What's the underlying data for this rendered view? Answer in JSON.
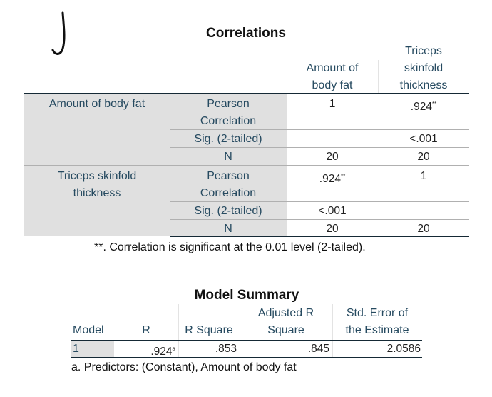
{
  "corr": {
    "title": "Correlations",
    "col_headers": [
      "Amount of body fat",
      "Triceps skinfold thickness"
    ],
    "col_header_lines": [
      [
        "Amount of",
        "body fat"
      ],
      [
        "Triceps",
        "skinfold",
        "thickness"
      ]
    ],
    "rows": [
      {
        "label": "Amount of body fat",
        "label_lines": [
          "Amount of body fat"
        ],
        "stats": [
          {
            "name_lines": [
              "Pearson",
              "Correlation"
            ],
            "values": [
              "1",
              ".924"
            ],
            "sup": [
              "",
              "**"
            ]
          },
          {
            "name_lines": [
              "Sig. (2-tailed)"
            ],
            "values": [
              "",
              "<.001"
            ],
            "sup": [
              "",
              ""
            ]
          },
          {
            "name_lines": [
              "N"
            ],
            "values": [
              "20",
              "20"
            ],
            "sup": [
              "",
              ""
            ]
          }
        ]
      },
      {
        "label": "Triceps skinfold thickness",
        "label_lines": [
          "Triceps skinfold",
          "thickness"
        ],
        "stats": [
          {
            "name_lines": [
              "Pearson",
              "Correlation"
            ],
            "values": [
              ".924",
              "1"
            ],
            "sup": [
              "**",
              ""
            ]
          },
          {
            "name_lines": [
              "Sig. (2-tailed)"
            ],
            "values": [
              "<.001",
              ""
            ],
            "sup": [
              "",
              ""
            ]
          },
          {
            "name_lines": [
              "N"
            ],
            "values": [
              "20",
              "20"
            ],
            "sup": [
              "",
              ""
            ]
          }
        ]
      }
    ],
    "footnote": "**. Correlation is significant at the 0.01 level (2-tailed)."
  },
  "model": {
    "title": "Model Summary",
    "headers": {
      "model": "Model",
      "r": "R",
      "r_square": "R Square",
      "adj_line1": "Adjusted R",
      "adj_line2": "Square",
      "se_line1": "Std. Error of",
      "se_line2": "the Estimate"
    },
    "row": {
      "model": "1",
      "r": ".924",
      "r_sup": "a",
      "r_square": ".853",
      "adj": ".845",
      "se": "2.0586"
    },
    "footnote": "a. Predictors: (Constant), Amount of body fat"
  },
  "colors": {
    "header_text": "#264a60",
    "label_bg": "#e0e0e0",
    "rule": "#152935"
  }
}
